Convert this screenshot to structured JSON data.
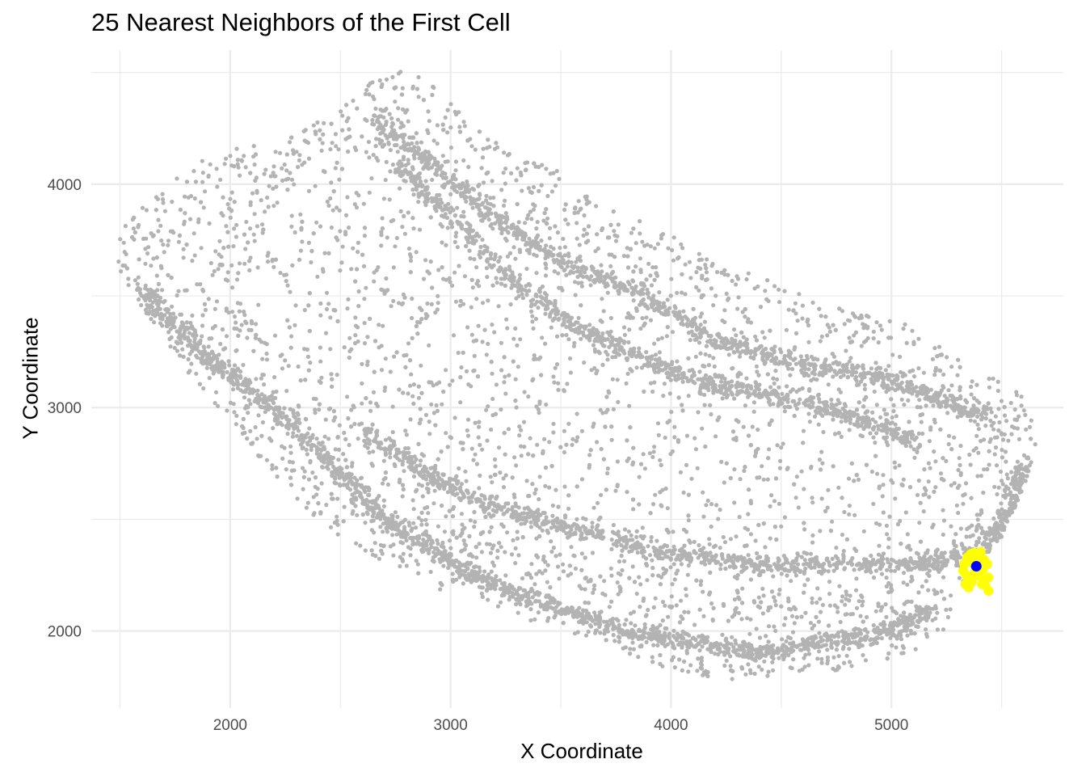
{
  "chart_data": {
    "type": "scatter",
    "title": "25 Nearest Neighbors of the First Cell",
    "xlabel": "X Coordinate",
    "ylabel": "Y Coordinate",
    "xlim": [
      1370,
      5780
    ],
    "ylim": [
      1655,
      4600
    ],
    "x_ticks": [
      2000,
      3000,
      4000,
      5000
    ],
    "y_ticks": [
      2000,
      3000,
      4000
    ],
    "grid": true,
    "legend": "none",
    "colors": {
      "cells": "#b3b3b3",
      "neighbors": "#ffff00",
      "first_cell": "#0000ff",
      "grid": "#ebebeb"
    },
    "series": [
      {
        "role": "all-cells",
        "color": "#b3b3b3",
        "shape": "crescent tissue band",
        "outer_boundary": [
          [
            1480,
            3750
          ],
          [
            1520,
            3820
          ],
          [
            1700,
            3990
          ],
          [
            1900,
            4140
          ],
          [
            2050,
            4180
          ],
          [
            2200,
            4160
          ],
          [
            2350,
            4260
          ],
          [
            2500,
            4330
          ],
          [
            2650,
            4470
          ],
          [
            2750,
            4530
          ],
          [
            2850,
            4520
          ],
          [
            3000,
            4360
          ],
          [
            3200,
            4200
          ],
          [
            3500,
            4050
          ],
          [
            3800,
            3870
          ],
          [
            4000,
            3780
          ],
          [
            4200,
            3640
          ],
          [
            4500,
            3570
          ],
          [
            4800,
            3430
          ],
          [
            5050,
            3380
          ],
          [
            5300,
            3220
          ],
          [
            5500,
            3130
          ],
          [
            5620,
            3030
          ],
          [
            5660,
            2850
          ],
          [
            5620,
            2700
          ],
          [
            5560,
            2550
          ],
          [
            5500,
            2420
          ],
          [
            5400,
            2300
          ],
          [
            5300,
            2100
          ],
          [
            5200,
            1950
          ],
          [
            5000,
            1870
          ],
          [
            4800,
            1820
          ],
          [
            4550,
            1790
          ],
          [
            4300,
            1780
          ],
          [
            4100,
            1800
          ],
          [
            3900,
            1850
          ],
          [
            3700,
            1940
          ],
          [
            3500,
            2000
          ],
          [
            3300,
            2070
          ],
          [
            3100,
            2140
          ],
          [
            2900,
            2200
          ],
          [
            2700,
            2300
          ],
          [
            2500,
            2420
          ],
          [
            2300,
            2580
          ],
          [
            2150,
            2750
          ],
          [
            2000,
            2950
          ],
          [
            1850,
            3100
          ],
          [
            1700,
            3300
          ],
          [
            1580,
            3480
          ],
          [
            1490,
            3630
          ]
        ],
        "inner_boundary": [
          [
            2150,
            3900
          ],
          [
            2400,
            3950
          ],
          [
            2700,
            4150
          ],
          [
            2950,
            4050
          ],
          [
            3300,
            3700
          ],
          [
            3700,
            3450
          ],
          [
            4200,
            3150
          ],
          [
            4700,
            2950
          ],
          [
            5150,
            2750
          ],
          [
            5350,
            2500
          ],
          [
            5150,
            2350
          ],
          [
            4700,
            2300
          ],
          [
            4100,
            2350
          ],
          [
            3600,
            2450
          ],
          [
            3100,
            2600
          ],
          [
            2700,
            2800
          ],
          [
            2400,
            3000
          ],
          [
            2200,
            3250
          ],
          [
            2080,
            3550
          ]
        ],
        "dense_bands": [
          [
            [
              1600,
              3550
            ],
            [
              1800,
              3300
            ],
            [
              2000,
              3150
            ],
            [
              2250,
              2950
            ],
            [
              2500,
              2700
            ],
            [
              2700,
              2500
            ],
            [
              2950,
              2350
            ],
            [
              3200,
              2200
            ],
            [
              3500,
              2100
            ],
            [
              3800,
              2000
            ],
            [
              4100,
              1950
            ],
            [
              4400,
              1900
            ],
            [
              4700,
              1950
            ],
            [
              5000,
              2000
            ],
            [
              5200,
              2100
            ]
          ],
          [
            [
              2650,
              4300
            ],
            [
              2900,
              4100
            ],
            [
              3200,
              3850
            ],
            [
              3500,
              3650
            ],
            [
              3850,
              3520
            ],
            [
              4200,
              3300
            ],
            [
              4550,
              3200
            ],
            [
              4900,
              3150
            ],
            [
              5200,
              3050
            ],
            [
              5450,
              2950
            ]
          ],
          [
            [
              2750,
              4100
            ],
            [
              3000,
              3850
            ],
            [
              3300,
              3550
            ],
            [
              3600,
              3350
            ],
            [
              3900,
              3200
            ],
            [
              4200,
              3100
            ],
            [
              4500,
              3050
            ],
            [
              4850,
              2950
            ],
            [
              5100,
              2850
            ]
          ],
          [
            [
              2600,
              2900
            ],
            [
              2900,
              2700
            ],
            [
              3200,
              2550
            ],
            [
              3600,
              2450
            ],
            [
              4000,
              2350
            ],
            [
              4400,
              2300
            ],
            [
              4800,
              2300
            ],
            [
              5150,
              2300
            ],
            [
              5400,
              2350
            ],
            [
              5550,
              2550
            ],
            [
              5600,
              2750
            ]
          ]
        ]
      },
      {
        "role": "nearest-neighbors",
        "color": "#ffff00",
        "x": [
          5330,
          5345,
          5360,
          5375,
          5390,
          5405,
          5420,
          5435,
          5325,
          5340,
          5355,
          5420,
          5440,
          5335,
          5350,
          5365,
          5380,
          5395,
          5410,
          5425,
          5440,
          5360,
          5380,
          5400,
          5415
        ],
        "y": [
          2300,
          2330,
          2345,
          2350,
          2340,
          2355,
          2320,
          2300,
          2270,
          2250,
          2235,
          2230,
          2240,
          2210,
          2195,
          2220,
          2270,
          2250,
          2210,
          2205,
          2180,
          2310,
          2310,
          2290,
          2275
        ]
      },
      {
        "role": "first-cell",
        "color": "#0000ff",
        "x": [
          5385
        ],
        "y": [
          2290
        ]
      }
    ]
  }
}
